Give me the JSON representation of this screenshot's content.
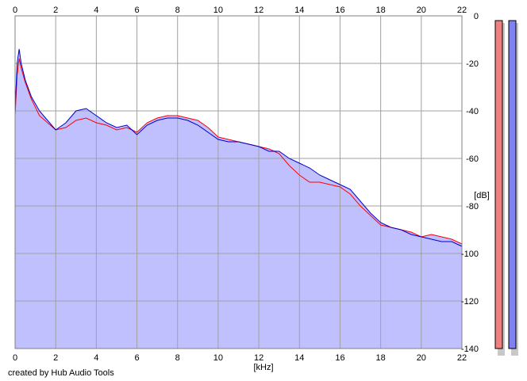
{
  "credit": "created by Hub Audio Tools",
  "chart_data": {
    "type": "area",
    "title": "",
    "xlabel": "[kHz]",
    "ylabel": "[dB]",
    "xlim": [
      0,
      22
    ],
    "ylim": [
      -140,
      0
    ],
    "x_ticks": [
      "0",
      "2",
      "4",
      "6",
      "8",
      "10",
      "12",
      "14",
      "16",
      "18",
      "20",
      "22"
    ],
    "y_ticks": [
      "0",
      "-20",
      "-40",
      "-60",
      "-80",
      "-100",
      "-120",
      "-140"
    ],
    "grid": true,
    "x": [
      0,
      0.1,
      0.2,
      0.3,
      0.5,
      0.8,
      1.2,
      1.6,
      2.0,
      2.5,
      3.0,
      3.5,
      4.0,
      4.5,
      5.0,
      5.5,
      6.0,
      6.5,
      7.0,
      7.5,
      8.0,
      8.5,
      9.0,
      9.5,
      10.0,
      10.5,
      11.0,
      11.5,
      12.0,
      12.5,
      13.0,
      13.5,
      14.0,
      14.5,
      15.0,
      15.5,
      16.0,
      16.5,
      17.0,
      17.5,
      18.0,
      18.5,
      19.0,
      19.5,
      20.0,
      20.5,
      21.0,
      21.5,
      22.0
    ],
    "series": [
      {
        "color": "#ff0000",
        "values": [
          -42,
          -25,
          -18,
          -22,
          -28,
          -35,
          -42,
          -45,
          -48,
          -47,
          -44,
          -43,
          -45,
          -46,
          -48,
          -47,
          -49,
          -45,
          -43,
          -42,
          -42,
          -43,
          -44,
          -47,
          -51,
          -52,
          -53,
          -54,
          -55,
          -56,
          -58,
          -63,
          -67,
          -70,
          -70,
          -71,
          -72,
          -75,
          -80,
          -84,
          -88,
          -89,
          -90,
          -91,
          -93,
          -92,
          -93,
          -94,
          -96
        ]
      },
      {
        "color": "#0000cc",
        "values": [
          -40,
          -20,
          -14,
          -20,
          -27,
          -34,
          -40,
          -44,
          -48,
          -45,
          -40,
          -39,
          -42,
          -45,
          -47,
          -46,
          -50,
          -46,
          -44,
          -43,
          -43,
          -44,
          -46,
          -49,
          -52,
          -53,
          -53,
          -54,
          -55,
          -57,
          -57,
          -60,
          -62,
          -64,
          -67,
          -69,
          -71,
          -73,
          -78,
          -83,
          -87,
          -89,
          -90,
          -92,
          -93,
          -94,
          -95,
          -95,
          -97
        ]
      }
    ],
    "fill_color": "#c0c0ff",
    "meters": [
      {
        "color": "#f08080",
        "value": 0
      },
      {
        "color": "#8080f0",
        "value": 0
      }
    ]
  }
}
